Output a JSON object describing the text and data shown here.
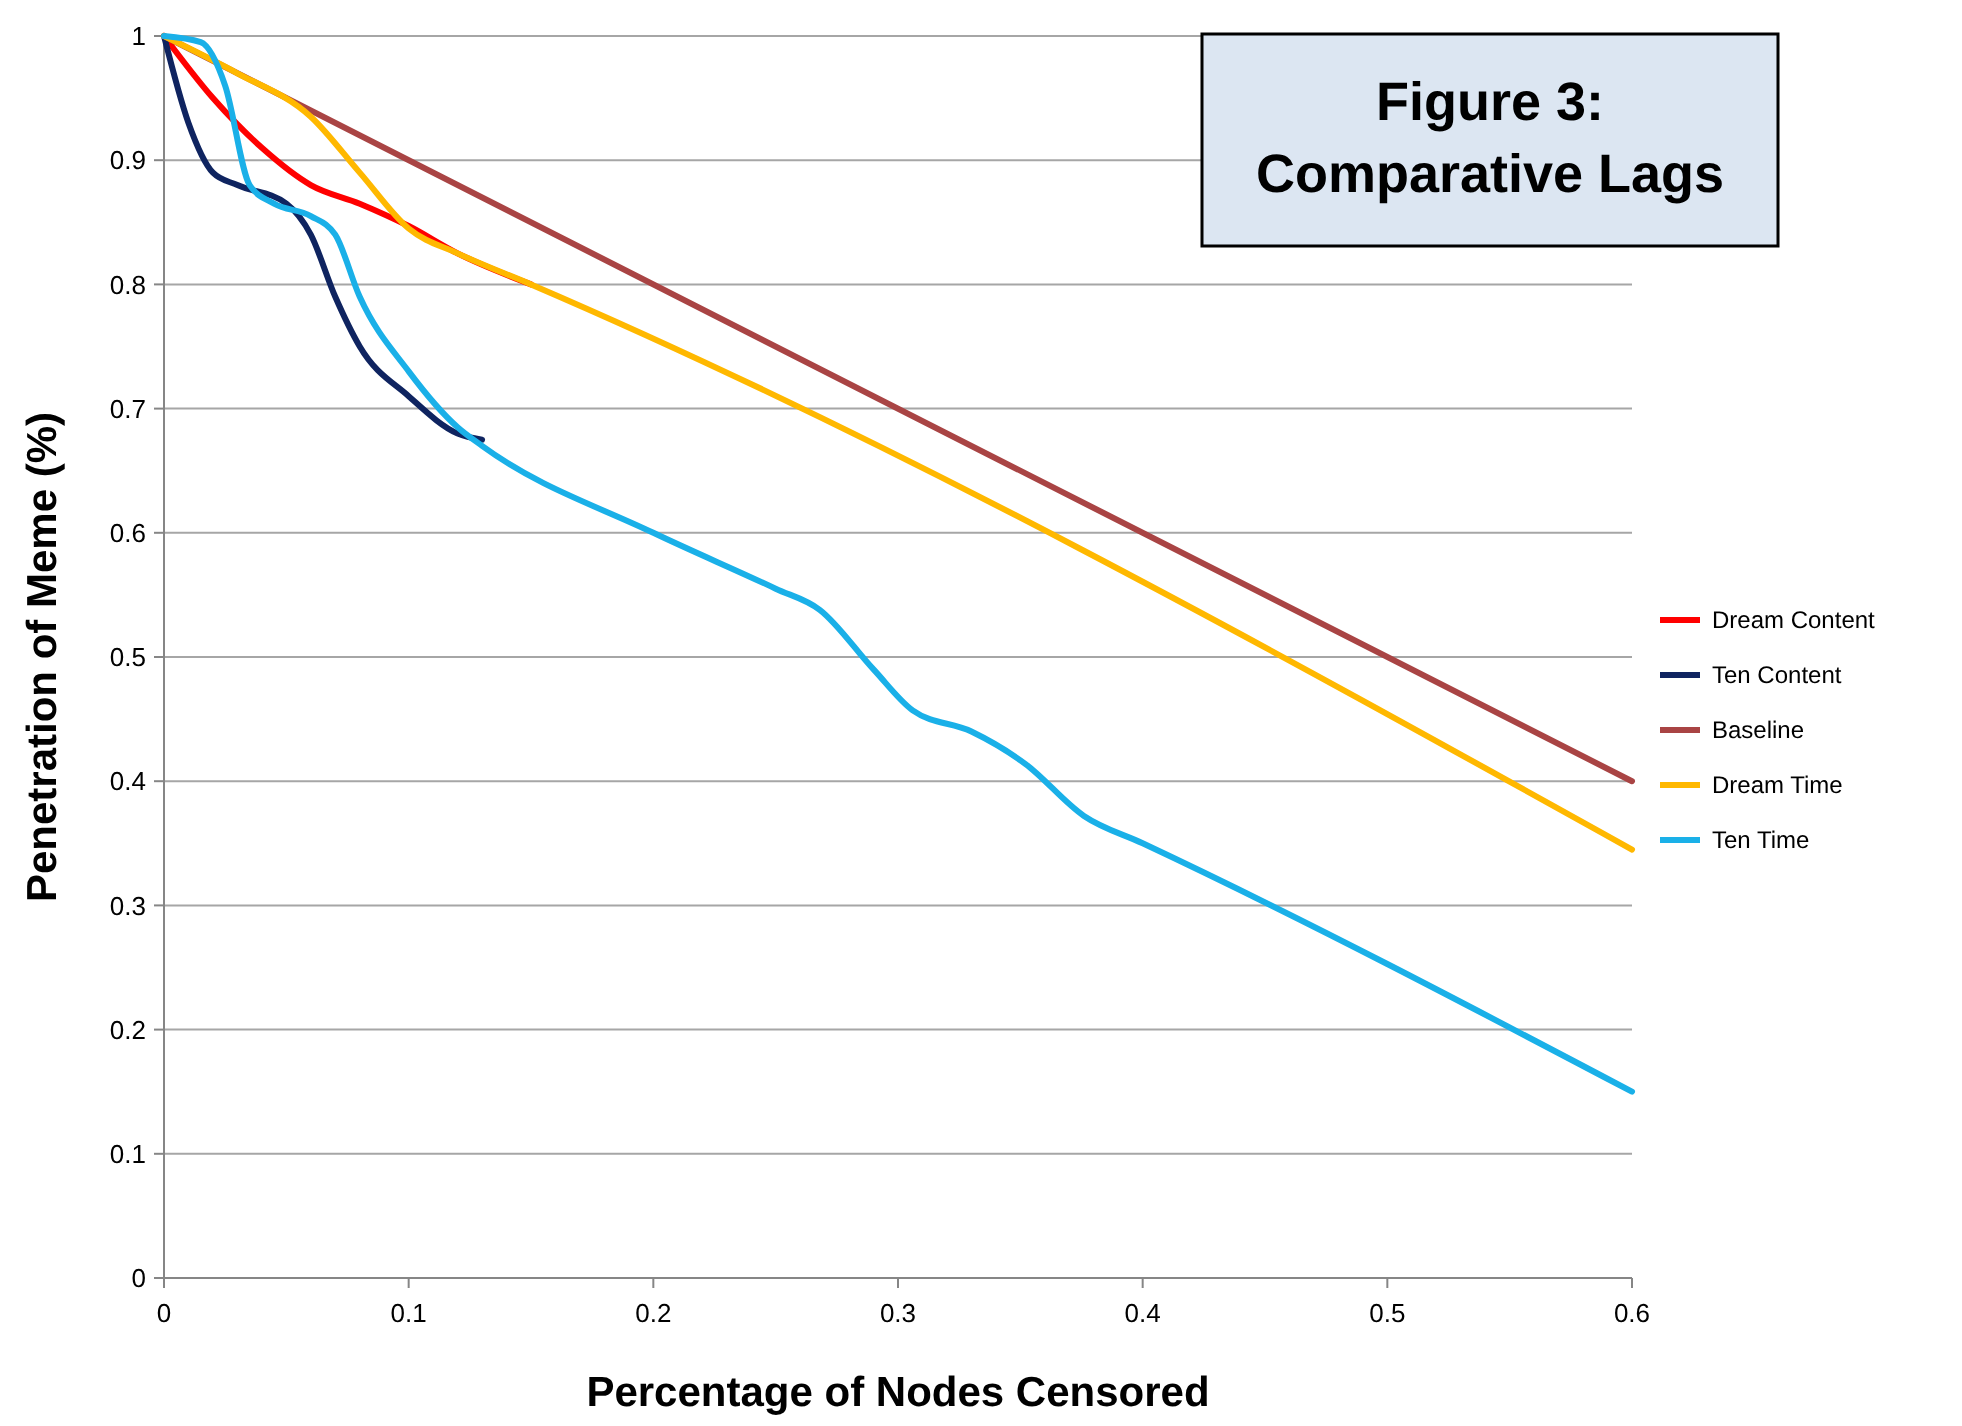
{
  "chart_data": {
    "type": "line",
    "title": "Figure 3:\nComparative Lags",
    "xlabel": "Percentage of Nodes Censored",
    "ylabel": "Penetration of Meme (%)",
    "xlim": [
      0,
      0.6
    ],
    "xticks": [
      0,
      0.1,
      0.2,
      0.3,
      0.4,
      0.5,
      0.6
    ],
    "ylim": [
      0,
      1
    ],
    "yticks": [
      0,
      0.1,
      0.2,
      0.3,
      0.4,
      0.5,
      0.6,
      0.7,
      0.8,
      0.9,
      1
    ],
    "grid": "y",
    "legend": "right",
    "marker": "none",
    "line_style": "solid",
    "series": [
      {
        "name": "Dream Content",
        "color": "#ff0000",
        "x": [
          0,
          0.02,
          0.04,
          0.06,
          0.08,
          0.1,
          0.12,
          0.15
        ],
        "values": [
          1,
          0.95,
          0.91,
          0.88,
          0.865,
          0.847,
          0.825,
          0.8
        ]
      },
      {
        "name": "Ten Content",
        "color": "#0f2460",
        "x": [
          0,
          0.01,
          0.02,
          0.03,
          0.05,
          0.06,
          0.07,
          0.08,
          0.1,
          0.12,
          0.13
        ],
        "values": [
          1,
          0.93,
          0.89,
          0.88,
          0.865,
          0.84,
          0.79,
          0.75,
          0.71,
          0.68,
          0.675
        ]
      },
      {
        "name": "Baseline",
        "color": "#a94444",
        "x": [
          0,
          0.6
        ],
        "values": [
          1,
          0.4
        ]
      },
      {
        "name": "Dream Time",
        "color": "#ffb800",
        "x": [
          0,
          0.03,
          0.06,
          0.08,
          0.1,
          0.12,
          0.15,
          0.6
        ],
        "values": [
          1,
          0.97,
          0.935,
          0.89,
          0.845,
          0.825,
          0.8,
          0.345
        ]
      },
      {
        "name": "Ten Time",
        "color": "#1ab0e8",
        "x": [
          0,
          0.015,
          0.025,
          0.035,
          0.045,
          0.06,
          0.07,
          0.08,
          0.1,
          0.12,
          0.13,
          0.2,
          0.25,
          0.268,
          0.29,
          0.306,
          0.33,
          0.352,
          0.376,
          0.4,
          0.6
        ],
        "values": [
          1,
          0.995,
          0.96,
          0.88,
          0.865,
          0.855,
          0.84,
          0.79,
          0.73,
          0.685,
          0.67,
          0.6,
          0.555,
          0.538,
          0.49,
          0.457,
          0.44,
          0.414,
          0.372,
          0.35,
          0.15
        ]
      }
    ]
  }
}
